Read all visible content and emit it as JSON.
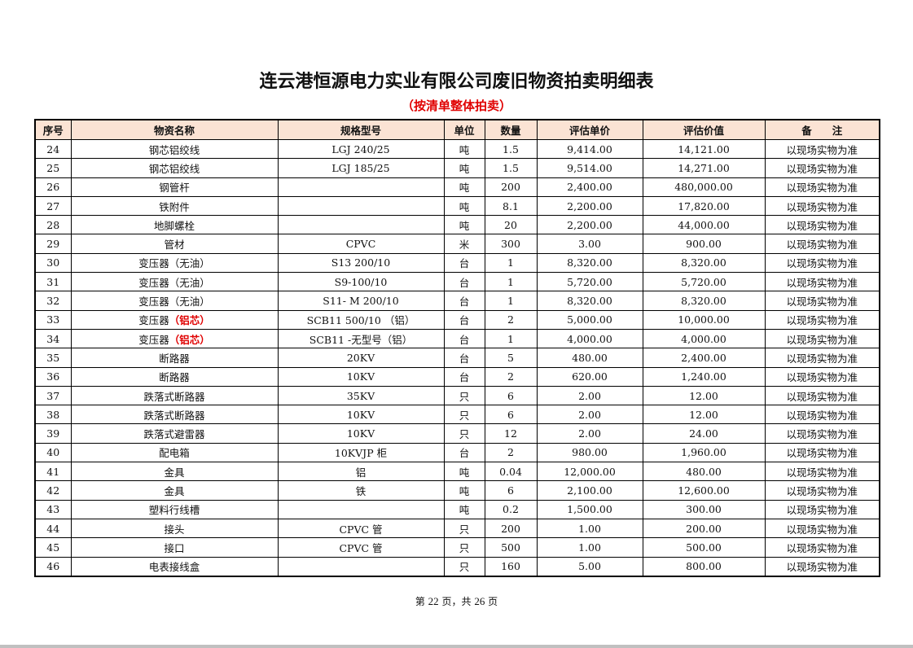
{
  "title": "连云港恒源电力实业有限公司废旧物资拍卖明细表",
  "subtitle": "（按清单整体拍卖）",
  "columns": [
    "序号",
    "物资名称",
    "规格型号",
    "单位",
    "数量",
    "评估单价",
    "评估价值",
    "备　　注"
  ],
  "rows": [
    {
      "no": "24",
      "name": "钢芯铝绞线",
      "note": "",
      "spec": "LGJ 240/25",
      "unit": "吨",
      "qty": "1.5",
      "price": "9,414.00",
      "value": "14,121.00",
      "remark": "以现场实物为准"
    },
    {
      "no": "25",
      "name": "钢芯铝绞线",
      "note": "",
      "spec": "LGJ 185/25",
      "unit": "吨",
      "qty": "1.5",
      "price": "9,514.00",
      "value": "14,271.00",
      "remark": "以现场实物为准"
    },
    {
      "no": "26",
      "name": "钢管杆",
      "note": "",
      "spec": "",
      "unit": "吨",
      "qty": "200",
      "price": "2,400.00",
      "value": "480,000.00",
      "remark": "以现场实物为准"
    },
    {
      "no": "27",
      "name": "铁附件",
      "note": "",
      "spec": "",
      "unit": "吨",
      "qty": "8.1",
      "price": "2,200.00",
      "value": "17,820.00",
      "remark": "以现场实物为准"
    },
    {
      "no": "28",
      "name": "地脚螺栓",
      "note": "",
      "spec": "",
      "unit": "吨",
      "qty": "20",
      "price": "2,200.00",
      "value": "44,000.00",
      "remark": "以现场实物为准"
    },
    {
      "no": "29",
      "name": "管材",
      "note": "",
      "spec": "CPVC",
      "unit": "米",
      "qty": "300",
      "price": "3.00",
      "value": "900.00",
      "remark": "以现场实物为准"
    },
    {
      "no": "30",
      "name": "变压器（无油）",
      "note": "",
      "spec": "S13 200/10",
      "unit": "台",
      "qty": "1",
      "price": "8,320.00",
      "value": "8,320.00",
      "remark": "以现场实物为准"
    },
    {
      "no": "31",
      "name": "变压器（无油）",
      "note": "",
      "spec": "S9-100/10",
      "unit": "台",
      "qty": "1",
      "price": "5,720.00",
      "value": "5,720.00",
      "remark": "以现场实物为准"
    },
    {
      "no": "32",
      "name": "变压器（无油）",
      "note": "",
      "spec": "S11- M 200/10",
      "unit": "台",
      "qty": "1",
      "price": "8,320.00",
      "value": "8,320.00",
      "remark": "以现场实物为准"
    },
    {
      "no": "33",
      "name": "变压器",
      "note": "（铝芯）",
      "spec": "SCB11 500/10 （铝）",
      "unit": "台",
      "qty": "2",
      "price": "5,000.00",
      "value": "10,000.00",
      "remark": "以现场实物为准"
    },
    {
      "no": "34",
      "name": "变压器",
      "note": "（铝芯）",
      "spec": "SCB11 -无型号（铝）",
      "unit": "台",
      "qty": "1",
      "price": "4,000.00",
      "value": "4,000.00",
      "remark": "以现场实物为准"
    },
    {
      "no": "35",
      "name": "断路器",
      "note": "",
      "spec": "20KV",
      "unit": "台",
      "qty": "5",
      "price": "480.00",
      "value": "2,400.00",
      "remark": "以现场实物为准"
    },
    {
      "no": "36",
      "name": "断路器",
      "note": "",
      "spec": "10KV",
      "unit": "台",
      "qty": "2",
      "price": "620.00",
      "value": "1,240.00",
      "remark": "以现场实物为准"
    },
    {
      "no": "37",
      "name": "跌落式断路器",
      "note": "",
      "spec": "35KV",
      "unit": "只",
      "qty": "6",
      "price": "2.00",
      "value": "12.00",
      "remark": "以现场实物为准"
    },
    {
      "no": "38",
      "name": "跌落式断路器",
      "note": "",
      "spec": "10KV",
      "unit": "只",
      "qty": "6",
      "price": "2.00",
      "value": "12.00",
      "remark": "以现场实物为准"
    },
    {
      "no": "39",
      "name": "跌落式避雷器",
      "note": "",
      "spec": "10KV",
      "unit": "只",
      "qty": "12",
      "price": "2.00",
      "value": "24.00",
      "remark": "以现场实物为准"
    },
    {
      "no": "40",
      "name": "配电箱",
      "note": "",
      "spec": "10KVJP 柜",
      "unit": "台",
      "qty": "2",
      "price": "980.00",
      "value": "1,960.00",
      "remark": "以现场实物为准"
    },
    {
      "no": "41",
      "name": "金具",
      "note": "",
      "spec": "铝",
      "unit": "吨",
      "qty": "0.04",
      "price": "12,000.00",
      "value": "480.00",
      "remark": "以现场实物为准"
    },
    {
      "no": "42",
      "name": "金具",
      "note": "",
      "spec": "铁",
      "unit": "吨",
      "qty": "6",
      "price": "2,100.00",
      "value": "12,600.00",
      "remark": "以现场实物为准"
    },
    {
      "no": "43",
      "name": "塑料行线槽",
      "note": "",
      "spec": "",
      "unit": "吨",
      "qty": "0.2",
      "price": "1,500.00",
      "value": "300.00",
      "remark": "以现场实物为准"
    },
    {
      "no": "44",
      "name": "接头",
      "note": "",
      "spec": "CPVC 管",
      "unit": "只",
      "qty": "200",
      "price": "1.00",
      "value": "200.00",
      "remark": "以现场实物为准"
    },
    {
      "no": "45",
      "name": "接口",
      "note": "",
      "spec": "CPVC 管",
      "unit": "只",
      "qty": "500",
      "price": "1.00",
      "value": "500.00",
      "remark": "以现场实物为准"
    },
    {
      "no": "46",
      "name": "电表接线盒",
      "note": "",
      "spec": "",
      "unit": "只",
      "qty": "160",
      "price": "5.00",
      "value": "800.00",
      "remark": "以现场实物为准"
    }
  ],
  "footer": {
    "prefix": "第",
    "page": "22",
    "middle": "页，共",
    "total": "26",
    "suffix": "页"
  },
  "colors": {
    "header_bg": "#fbe3d4",
    "highlight": "#e00000"
  }
}
